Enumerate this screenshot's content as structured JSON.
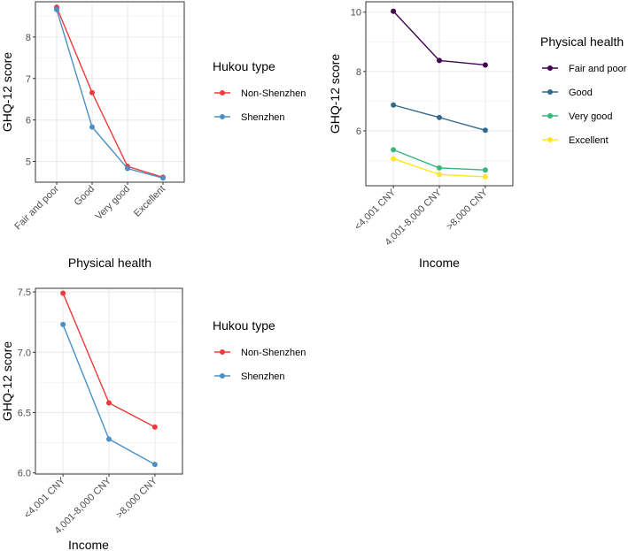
{
  "chart_data": [
    {
      "type": "line",
      "title": "",
      "xlabel": "Physical health",
      "ylabel": "GHQ-12 score",
      "categories": [
        "Fair and poor",
        "Good",
        "Very good",
        "Excellent"
      ],
      "ylim": [
        4.5,
        8.85
      ],
      "yticks": [
        5,
        6,
        7,
        8
      ],
      "grid": true,
      "legend_title": "Hukou type",
      "legend_position": "right",
      "series": [
        {
          "name": "Non-Shenzhen",
          "color": "#ee3b3b",
          "values": [
            8.72,
            6.66,
            4.88,
            4.62
          ]
        },
        {
          "name": "Shenzhen",
          "color": "#4a90c8",
          "values": [
            8.66,
            5.83,
            4.83,
            4.6
          ]
        }
      ]
    },
    {
      "type": "line",
      "title": "",
      "xlabel": "Income",
      "ylabel": "GHQ-12 score",
      "categories": [
        "<4,001 CNY",
        "4,001-8,000 CNY",
        ">8,000 CNY"
      ],
      "ylim": [
        4.15,
        10.35
      ],
      "yticks": [
        6,
        8,
        10
      ],
      "grid": true,
      "legend_title": "Physical health",
      "legend_position": "right",
      "series": [
        {
          "name": "Fair and poor",
          "color": "#440154",
          "values": [
            10.03,
            8.37,
            8.22
          ]
        },
        {
          "name": "Good",
          "color": "#31688e",
          "values": [
            6.87,
            6.45,
            6.02
          ]
        },
        {
          "name": "Very good",
          "color": "#35b779",
          "values": [
            5.36,
            4.75,
            4.68
          ]
        },
        {
          "name": "Excellent",
          "color": "#fde725",
          "values": [
            5.06,
            4.53,
            4.45
          ]
        }
      ]
    },
    {
      "type": "line",
      "title": "",
      "xlabel": "Income",
      "ylabel": "GHQ-12 score",
      "categories": [
        "<4,001 CNY",
        "4,001-8,000 CNY",
        ">8,000 CNY"
      ],
      "ylim": [
        5.99,
        7.53
      ],
      "yticks": [
        6.0,
        6.5,
        7.0,
        7.5
      ],
      "ytick_labels": [
        "6.0",
        "6.5",
        "7.0",
        "7.5"
      ],
      "grid": true,
      "legend_title": "Hukou type",
      "legend_position": "right",
      "series": [
        {
          "name": "Non-Shenzhen",
          "color": "#ee3b3b",
          "values": [
            7.49,
            6.58,
            6.38
          ]
        },
        {
          "name": "Shenzhen",
          "color": "#4a90c8",
          "values": [
            7.23,
            6.28,
            6.07
          ]
        }
      ]
    }
  ]
}
